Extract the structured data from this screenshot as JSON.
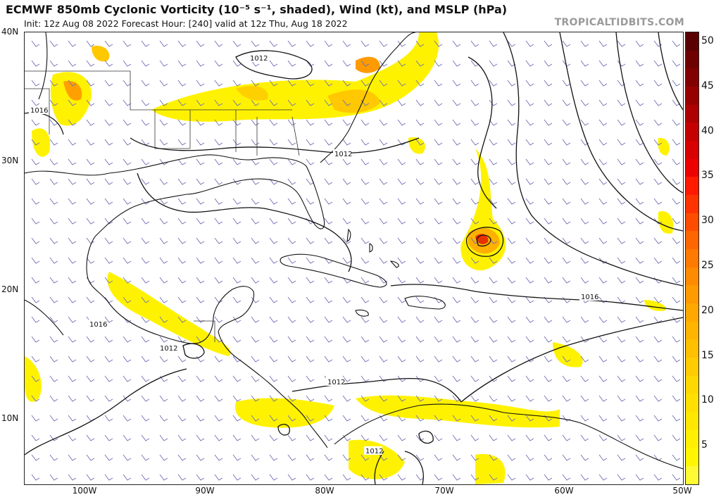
{
  "header": {
    "title": "ECMWF 850mb Cyclonic Vorticity (10⁻⁵ s⁻¹, shaded), Wind (kt), and MSLP (hPa)",
    "subtitle": "Init: 12z Aug 08 2022   Forecast Hour: [240]   valid at 12z Thu, Aug 18 2022",
    "site": "TROPICALTIDBITS.COM"
  },
  "axes": {
    "lat_labels": [
      "40N",
      "30N",
      "20N",
      "10N"
    ],
    "lon_labels": [
      "100W",
      "90W",
      "80W",
      "70W",
      "60W",
      "50W"
    ]
  },
  "colorbar": {
    "labels": [
      "50",
      "45",
      "40",
      "35",
      "30",
      "25",
      "20",
      "15",
      "10",
      "5"
    ],
    "colors": [
      "#5a0000",
      "#6e0000",
      "#820000",
      "#980000",
      "#ae0000",
      "#c40000",
      "#d80000",
      "#ec0000",
      "#ff1a00",
      "#ff3300",
      "#ff4d00",
      "#ff6600",
      "#ff7a00",
      "#ff8c00",
      "#ff9a00",
      "#ffa800",
      "#ffb400",
      "#ffc000",
      "#ffcc00",
      "#ffd800",
      "#ffe000",
      "#ffe800",
      "#fff000",
      "#fff600",
      "#fffa33"
    ]
  },
  "isobars": {
    "labels": [
      "1012",
      "1016",
      "1012",
      "1016",
      "1016",
      "1012",
      "1012",
      "1012"
    ]
  },
  "colors": {
    "land_border": "#111111",
    "isobar": "#111111",
    "barb": "#6e6eb4"
  }
}
